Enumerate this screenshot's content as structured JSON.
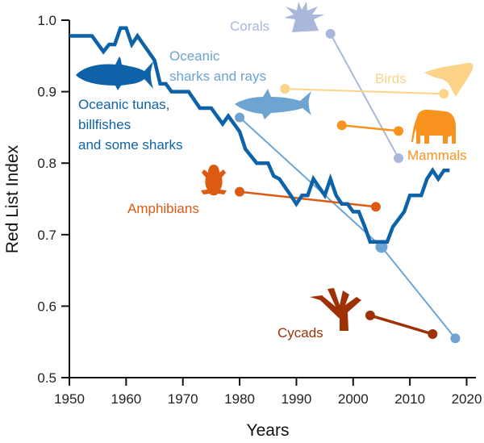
{
  "chart_data": {
    "type": "line",
    "title": "",
    "xlabel": "Years",
    "ylabel": "Red List Index",
    "xlim": [
      1950,
      2022
    ],
    "ylim": [
      0.5,
      1.0
    ],
    "xticks": [
      "1950",
      "1960",
      "1970",
      "1980",
      "1990",
      "2000",
      "2010",
      "2020"
    ],
    "yticks": [
      "0.5",
      "0.6",
      "0.7",
      "0.8",
      "0.9",
      "1.0"
    ],
    "grid": false,
    "legend": "inline-labels",
    "series": [
      {
        "name": "Oceanic tunas, billfishes and some sharks",
        "label_lines": [
          "Oceanic tunas,",
          "billfishes",
          "and some sharks"
        ],
        "icon": "tuna-icon",
        "color": "#0E63A8",
        "style": "continuous",
        "x": [
          1950,
          1954,
          1956,
          1957,
          1958,
          1959,
          1960,
          1961,
          1962,
          1965,
          1966,
          1967,
          1968,
          1971,
          1973,
          1975,
          1977,
          1978,
          1980,
          1981,
          1983,
          1985,
          1986,
          1987,
          1989,
          1990,
          1991,
          1992,
          1993,
          1995,
          1996,
          1997,
          1998,
          1999,
          2000,
          2001,
          2002,
          2003,
          2006,
          2007,
          2009,
          2010,
          2012,
          2013,
          2014,
          2015,
          2016,
          2017
        ],
        "y": [
          0.978,
          0.978,
          0.956,
          0.966,
          0.966,
          0.989,
          0.989,
          0.966,
          0.978,
          0.944,
          0.911,
          0.911,
          0.9,
          0.9,
          0.877,
          0.877,
          0.855,
          0.866,
          0.844,
          0.82,
          0.8,
          0.8,
          0.782,
          0.778,
          0.755,
          0.743,
          0.755,
          0.755,
          0.778,
          0.755,
          0.778,
          0.755,
          0.743,
          0.743,
          0.732,
          0.732,
          0.712,
          0.69,
          0.69,
          0.711,
          0.732,
          0.755,
          0.755,
          0.778,
          0.79,
          0.778,
          0.79,
          0.79
        ]
      },
      {
        "name": "Corals",
        "label_lines": [
          "Corals"
        ],
        "icon": "coral-icon",
        "color": "#A9B8DA",
        "style": "points",
        "x": [
          1996,
          2008
        ],
        "y": [
          0.981,
          0.807
        ]
      },
      {
        "name": "Oceanic sharks and rays",
        "label_lines": [
          "Oceanic",
          "sharks and rays"
        ],
        "icon": "shark-icon",
        "color": "#6DA4D2",
        "style": "points",
        "x": [
          1980,
          2005,
          2018
        ],
        "y": [
          0.864,
          0.683,
          0.555
        ]
      },
      {
        "name": "Birds",
        "label_lines": [
          "Birds"
        ],
        "icon": "bird-icon",
        "color": "#FBD48A",
        "style": "points",
        "x": [
          1988,
          2016
        ],
        "y": [
          0.904,
          0.897
        ]
      },
      {
        "name": "Mammals",
        "label_lines": [
          "Mammals"
        ],
        "icon": "elephant-icon",
        "color": "#F7931E",
        "style": "points",
        "x": [
          1998,
          2008
        ],
        "y": [
          0.853,
          0.845
        ]
      },
      {
        "name": "Amphibians",
        "label_lines": [
          "Amphibians"
        ],
        "icon": "frog-icon",
        "color": "#DD5A13",
        "style": "points",
        "x": [
          1980,
          2004
        ],
        "y": [
          0.76,
          0.739
        ]
      },
      {
        "name": "Cycads",
        "label_lines": [
          "Cycads"
        ],
        "icon": "cycad-icon",
        "color": "#9E3206",
        "style": "points",
        "x": [
          2003,
          2014
        ],
        "y": [
          0.587,
          0.561
        ]
      }
    ]
  }
}
